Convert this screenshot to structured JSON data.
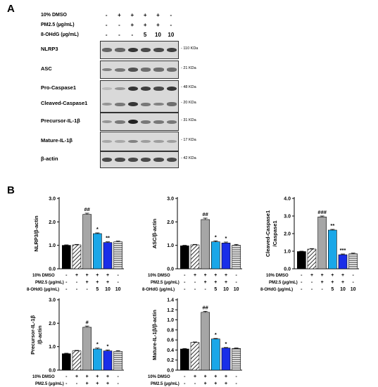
{
  "panel_a": {
    "letter": "A",
    "header_rows": [
      {
        "label": "10% DMSO",
        "signs": [
          "-",
          "+",
          "+",
          "+",
          "+",
          "-"
        ]
      },
      {
        "label": "PM2.5 (µg/mL)",
        "signs": [
          "-",
          "-",
          "+",
          "+",
          "+",
          "-"
        ]
      },
      {
        "label": "8-OHdG (µg/mL)",
        "signs": [
          "-",
          "-",
          "-",
          "5",
          "10",
          "10"
        ]
      }
    ],
    "blots": [
      {
        "name": "NLRP3",
        "kda": "110 KDa",
        "intensity": [
          0.6,
          0.6,
          0.85,
          0.75,
          0.75,
          0.8
        ]
      },
      {
        "name": "ASC",
        "kda": "21 KDa",
        "intensity": [
          0.45,
          0.5,
          0.7,
          0.55,
          0.55,
          0.55
        ]
      },
      {
        "name": "Pro-Caspase1",
        "kda": "48 KDa",
        "intensity": [
          0.15,
          0.35,
          0.85,
          0.8,
          0.75,
          0.85
        ]
      },
      {
        "name": "Cleaved-Caspase1",
        "kda": "20 KDa",
        "intensity": [
          0.35,
          0.5,
          0.85,
          0.5,
          0.45,
          0.55
        ]
      },
      {
        "name": "Precursor-IL-1β",
        "kda": "31 KDa",
        "intensity": [
          0.35,
          0.5,
          0.95,
          0.5,
          0.5,
          0.5
        ]
      },
      {
        "name": "Mature-IL-1β",
        "kda": "17 KDa",
        "intensity": [
          0.25,
          0.25,
          0.45,
          0.3,
          0.3,
          0.3
        ]
      },
      {
        "name": "β-actin",
        "kda": "42 KDa",
        "intensity": [
          0.75,
          0.75,
          0.75,
          0.75,
          0.75,
          0.75
        ]
      }
    ]
  },
  "panel_b": {
    "letter": "B",
    "conditions": [
      {
        "label": "10% DMSO",
        "signs": [
          "-",
          "+",
          "+",
          "+",
          "+",
          "-"
        ]
      },
      {
        "label": "PM2.5 (µg/mL)",
        "signs": [
          "-",
          "-",
          "+",
          "+",
          "+",
          "-"
        ]
      },
      {
        "label": "8-OHdG (µg/mL)",
        "signs": [
          "-",
          "-",
          "-",
          "5",
          "10",
          "10"
        ]
      }
    ],
    "bar_styles": [
      "#000000",
      "hatch",
      "#a6a6a6",
      "#1aa7e8",
      "#1a2ee8",
      "stripe-gray"
    ]
  },
  "chart_data": [
    {
      "type": "bar",
      "ylabel": "NLRP3/β-actin",
      "ylim": [
        0,
        3.0
      ],
      "yticks": [
        "0.0",
        "1.0",
        "2.0",
        "3.0"
      ],
      "values": [
        1.0,
        1.02,
        2.32,
        1.5,
        1.12,
        1.15
      ],
      "errors": [
        0.02,
        0.02,
        0.05,
        0.03,
        0.03,
        0.03
      ],
      "annotations": [
        "",
        "",
        "##",
        "*",
        "**",
        ""
      ]
    },
    {
      "type": "bar",
      "ylabel": "ASC/β-actin",
      "ylim": [
        0,
        3.0
      ],
      "yticks": [
        "0.0",
        "1.0",
        "2.0",
        "3.0"
      ],
      "values": [
        0.98,
        1.02,
        2.1,
        1.15,
        1.1,
        1.0
      ],
      "errors": [
        0.02,
        0.02,
        0.06,
        0.04,
        0.04,
        0.04
      ],
      "annotations": [
        "",
        "",
        "##",
        "*",
        "*",
        ""
      ]
    },
    {
      "type": "bar",
      "ylabel": "Cleaved-Caspase1 /Caspase1",
      "ylim": [
        0,
        4.0
      ],
      "yticks": [
        "0.0",
        "1.0",
        "2.0",
        "3.0",
        "4.0"
      ],
      "values": [
        0.98,
        1.12,
        2.95,
        2.2,
        0.8,
        0.85
      ],
      "errors": [
        0.02,
        0.03,
        0.05,
        0.04,
        0.04,
        0.04
      ],
      "annotations": [
        "",
        "",
        "###",
        "**",
        "***",
        ""
      ]
    },
    {
      "type": "bar",
      "ylabel": "Precursor-IL-1β /β-actin",
      "ylim": [
        0,
        3.0
      ],
      "yticks": [
        "0.0",
        "1.0",
        "2.0",
        "3.0"
      ],
      "values": [
        0.7,
        0.82,
        1.83,
        0.9,
        0.82,
        0.8
      ],
      "errors": [
        0.02,
        0.02,
        0.05,
        0.04,
        0.04,
        0.03
      ],
      "annotations": [
        "",
        "",
        "#",
        "*",
        "*",
        ""
      ]
    },
    {
      "type": "bar",
      "ylabel": "Mature-IL-1β/β-actin",
      "ylim": [
        0,
        1.4
      ],
      "yticks": [
        "0.0",
        "0.2",
        "0.4",
        "0.6",
        "0.8",
        "1.0",
        "1.2",
        "1.4"
      ],
      "values": [
        0.42,
        0.55,
        1.15,
        0.62,
        0.44,
        0.43
      ],
      "errors": [
        0.01,
        0.01,
        0.02,
        0.01,
        0.01,
        0.01
      ],
      "annotations": [
        "",
        "",
        "##",
        "*",
        "*",
        ""
      ]
    }
  ]
}
